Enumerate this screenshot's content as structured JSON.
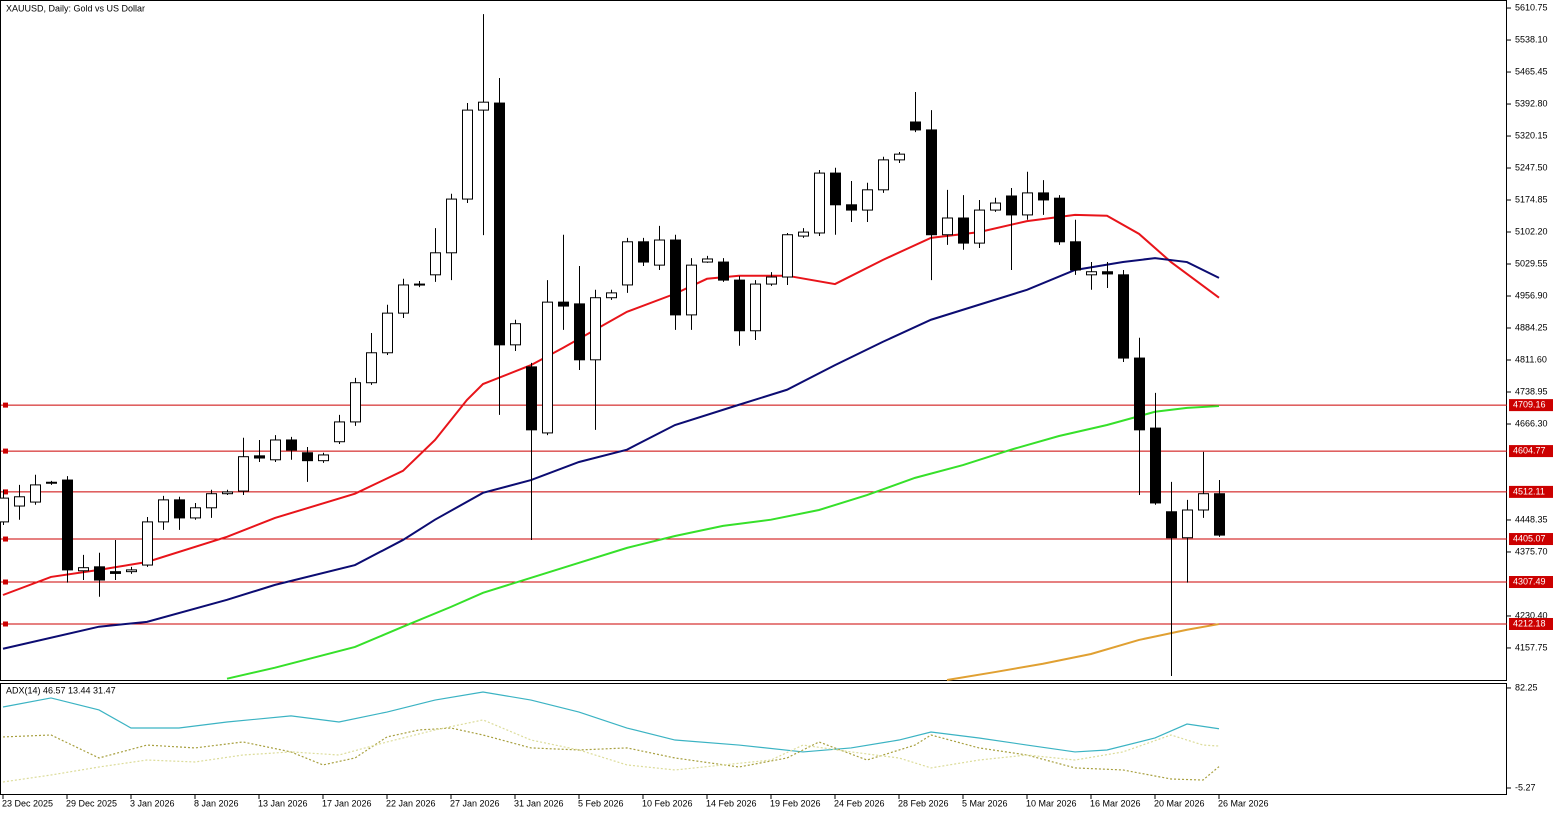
{
  "chart_data": [
    {
      "type": "candlestick",
      "title": "XAUUSD, Daily:  Gold vs US Dollar",
      "categories": [
        "23 Dec 2025",
        null,
        null,
        null,
        "29 Dec 2025",
        null,
        null,
        null,
        "3 Jan 2026",
        null,
        null,
        null,
        "8 Jan 2026",
        null,
        null,
        null,
        "13 Jan 2026",
        null,
        null,
        null,
        "17 Jan 2026",
        null,
        null,
        null,
        "22 Jan 2026",
        null,
        null,
        null,
        "27 Jan 2026",
        null,
        null,
        null,
        "31 Jan 2026",
        null,
        null,
        null,
        "5 Feb 2026",
        null,
        null,
        null,
        "10 Feb 2026",
        null,
        null,
        null,
        "14 Feb 2026",
        null,
        null,
        null,
        "19 Feb 2026",
        null,
        null,
        null,
        "24 Feb 2026",
        null,
        null,
        null,
        "28 Feb 2026",
        null,
        null,
        null,
        "5 Mar 2026",
        null,
        null,
        null,
        "10 Mar 2026",
        null,
        null,
        null,
        "16 Mar 2026",
        null,
        null,
        null,
        "20 Mar 2026",
        null,
        null,
        null,
        "26 Mar 2026"
      ],
      "open": [
        4444,
        4480,
        4489,
        4533,
        4539,
        4333,
        4342,
        4331,
        4331,
        4346,
        4444,
        4494,
        4453,
        4476,
        4508,
        4514,
        4594,
        4585,
        4630,
        4601,
        4583,
        4626,
        4671,
        4760,
        4828,
        4918,
        4982,
        5005,
        5055,
        5177,
        5379,
        5395,
        4846,
        4796,
        4646,
        4943,
        4939,
        4812,
        4953,
        4982,
        5080,
        5027,
        5084,
        4914,
        5034,
        5034,
        4993,
        4878,
        4984,
        5000,
        5093,
        5100,
        5236,
        5164,
        5152,
        5198,
        5266,
        5352,
        5334,
        5096,
        5134,
        5077,
        5152,
        5184,
        5141,
        5191,
        5179,
        5080,
        5005,
        5012,
        5005,
        4816,
        4657,
        4467,
        4408,
        4471,
        4508
      ],
      "high": [
        4517,
        4528,
        4551,
        4537,
        4548,
        4369,
        4374,
        4403,
        4342,
        4455,
        4503,
        4501,
        4487,
        4517,
        4517,
        4635,
        4630,
        4641,
        4637,
        4614,
        4601,
        4687,
        4771,
        4873,
        4937,
        4996,
        4991,
        5111,
        5189,
        5395,
        5597,
        5452,
        4903,
        4805,
        4993,
        5096,
        5025,
        4971,
        4971,
        5089,
        5089,
        5116,
        5096,
        5043,
        5048,
        5043,
        5002,
        4993,
        5011,
        5100,
        5111,
        5243,
        5248,
        5218,
        5214,
        5273,
        5284,
        5420,
        5379,
        5198,
        5186,
        5175,
        5180,
        5202,
        5239,
        5220,
        5186,
        5130,
        5034,
        5034,
        5016,
        4862,
        4737,
        4535,
        4494,
        4603,
        4539
      ],
      "low": [
        4437,
        4449,
        4483,
        4528,
        4306,
        4312,
        4274,
        4312,
        4326,
        4342,
        4426,
        4426,
        4449,
        4453,
        4505,
        4505,
        4580,
        4580,
        4585,
        4535,
        4578,
        4621,
        4662,
        4755,
        4823,
        4907,
        4977,
        4989,
        4993,
        5168,
        5095,
        4687,
        4832,
        4403,
        4641,
        4880,
        4789,
        4653,
        4948,
        4964,
        5025,
        5016,
        4880,
        4880,
        5032,
        4989,
        4844,
        4857,
        4980,
        4982,
        5089,
        5093,
        5096,
        5125,
        5125,
        5191,
        5259,
        5329,
        4993,
        5073,
        5062,
        5066,
        5148,
        5016,
        5130,
        5141,
        5073,
        5005,
        4971,
        4975,
        4807,
        4505,
        4483,
        4094,
        4306,
        4453,
        4410
      ],
      "close": [
        4498,
        4501,
        4528,
        4534,
        4335,
        4340,
        4312,
        4327,
        4335,
        4444,
        4494,
        4453,
        4476,
        4508,
        4512,
        4592,
        4589,
        4630,
        4607,
        4583,
        4596,
        4671,
        4760,
        4828,
        4918,
        4982,
        4984,
        5055,
        5177,
        5379,
        5397,
        4846,
        4894,
        4653,
        4943,
        4934,
        4812,
        4953,
        4964,
        5080,
        5034,
        5084,
        4914,
        5027,
        5041,
        4993,
        4878,
        4984,
        5000,
        5096,
        5102,
        5236,
        5164,
        5152,
        5198,
        5266,
        5279,
        5334,
        5096,
        5134,
        5077,
        5152,
        5168,
        5141,
        5191,
        5175,
        5080,
        5016,
        5012,
        5007,
        4816,
        4653,
        4487,
        4408,
        4471,
        4508,
        4414
      ],
      "series": [
        {
          "color": "#e8141a",
          "x": [
            0,
            3,
            6,
            9,
            14,
            17,
            22,
            25,
            27,
            29,
            30,
            33,
            35,
            39,
            42,
            44,
            46,
            49,
            52,
            55,
            58,
            61,
            64,
            67,
            69,
            71,
            73,
            76
          ],
          "values": [
            4278,
            4319,
            4335,
            4353,
            4410,
            4453,
            4508,
            4560,
            4630,
            4721,
            4757,
            4800,
            4839,
            4921,
            4962,
            4996,
            5003,
            5003,
            4984,
            5039,
            5089,
            5102,
            5127,
            5141,
            5139,
            5098,
            5034,
            4953
          ]
        },
        {
          "color": "#0c0c72",
          "x": [
            0,
            6,
            9,
            14,
            17,
            22,
            25,
            27,
            30,
            33,
            36,
            39,
            42,
            46,
            49,
            52,
            55,
            58,
            61,
            64,
            67,
            70,
            72,
            74,
            76
          ],
          "values": [
            4156,
            4206,
            4217,
            4267,
            4301,
            4346,
            4403,
            4449,
            4510,
            4539,
            4580,
            4608,
            4664,
            4710,
            4744,
            4800,
            4853,
            4903,
            4937,
            4971,
            5016,
            5034,
            5043,
            5034,
            4998
          ]
        },
        {
          "color": "#36e02a",
          "x": [
            14,
            17,
            22,
            25,
            28,
            30,
            33,
            36,
            39,
            42,
            45,
            48,
            51,
            54,
            57,
            60,
            63,
            66,
            69,
            72,
            74,
            76
          ],
          "values": [
            4088,
            4113,
            4160,
            4206,
            4251,
            4283,
            4317,
            4351,
            4385,
            4412,
            4435,
            4449,
            4471,
            4505,
            4544,
            4573,
            4608,
            4639,
            4664,
            4694,
            4703,
            4707
          ]
        },
        {
          "color": "#e0a032",
          "x": [
            59,
            62,
            65,
            68,
            71,
            74,
            76
          ],
          "values": [
            4085,
            4103,
            4122,
            4144,
            4176,
            4199,
            4212
          ]
        }
      ],
      "levels": [
        4709.16,
        4604.77,
        4512.11,
        4405.07,
        4307.49,
        4212.18
      ],
      "level_color": "#cc0000",
      "ylim": [
        4085,
        5629
      ],
      "yticks": [
        5610.75,
        {
          "value": 5538.1,
          "label": "5538.10"
        },
        5465.45,
        {
          "value": 5392.8,
          "label": "5392.80"
        },
        5320.15,
        {
          "value": 5247.5,
          "label": "5247.50"
        },
        5174.85,
        {
          "value": 5102.2,
          "label": "5102.20"
        },
        5029.55,
        {
          "value": 4956.9,
          "label": "4956.90"
        },
        4884.25,
        {
          "value": 4811.6,
          "label": "4811.60"
        },
        4738.95,
        {
          "value": 4666.3,
          "label": "4666.30"
        },
        4448.35,
        {
          "value": 4375.7,
          "label": "4375.70"
        },
        {
          "value": 4230.4,
          "label": "4230.40"
        },
        4157.75
      ],
      "bull_color": "#ffffff",
      "bear_color": "#000000"
    },
    {
      "type": "line",
      "title": "ADX(14) 46.57 13.44 31.47",
      "series": [
        {
          "color": "#3bb3c3",
          "dash": "none",
          "x": [
            0,
            3,
            6,
            8,
            11,
            14,
            18,
            21,
            24,
            27,
            30,
            33,
            36,
            39,
            42,
            46,
            50,
            53,
            56,
            58,
            61,
            64,
            67,
            69,
            72,
            74,
            76
          ],
          "values": [
            65.6,
            73.5,
            63.0,
            47.2,
            47.2,
            52.5,
            57.8,
            52.5,
            61.2,
            71.7,
            78.7,
            71.7,
            61.2,
            47.2,
            36.7,
            32.3,
            26.3,
            29.8,
            36.7,
            43.7,
            38.5,
            32.3,
            26.3,
            28.0,
            38.5,
            50.7,
            46.57
          ]
        },
        {
          "color": "#a8a040",
          "dash": "2,2",
          "x": [
            0,
            3,
            6,
            9,
            12,
            15,
            18,
            20,
            22,
            24,
            26,
            28,
            30,
            33,
            36,
            39,
            42,
            46,
            49,
            51,
            54,
            57,
            58,
            61,
            64,
            67,
            70,
            73,
            75,
            76
          ],
          "values": [
            39.4,
            41.1,
            21.0,
            32.3,
            29.8,
            35.0,
            26.3,
            14.9,
            21.0,
            39.4,
            45.5,
            47.2,
            41.1,
            29.8,
            28.0,
            29.8,
            21.0,
            13.1,
            21.0,
            35.0,
            19.2,
            32.3,
            41.1,
            29.8,
            23.6,
            12.3,
            10.5,
            2.6,
            1.7,
            13.44
          ]
        },
        {
          "color": "#dcdc9a",
          "dash": "2,2",
          "x": [
            0,
            3,
            6,
            9,
            12,
            15,
            18,
            21,
            24,
            27,
            30,
            33,
            36,
            39,
            42,
            45,
            48,
            50,
            53,
            56,
            58,
            61,
            64,
            67,
            70,
            73,
            75,
            76
          ],
          "values": [
            0.0,
            6.1,
            13.1,
            19.2,
            17.5,
            23.6,
            26.3,
            23.6,
            35.0,
            45.5,
            54.3,
            36.7,
            28.0,
            14.9,
            10.5,
            14.9,
            19.2,
            32.3,
            26.3,
            21.0,
            12.3,
            19.2,
            23.6,
            19.2,
            26.3,
            41.1,
            32.3,
            31.47
          ]
        }
      ],
      "ylim": [
        -11.4,
        86.6
      ],
      "yticks": [
        82.25,
        -5.27
      ]
    }
  ]
}
